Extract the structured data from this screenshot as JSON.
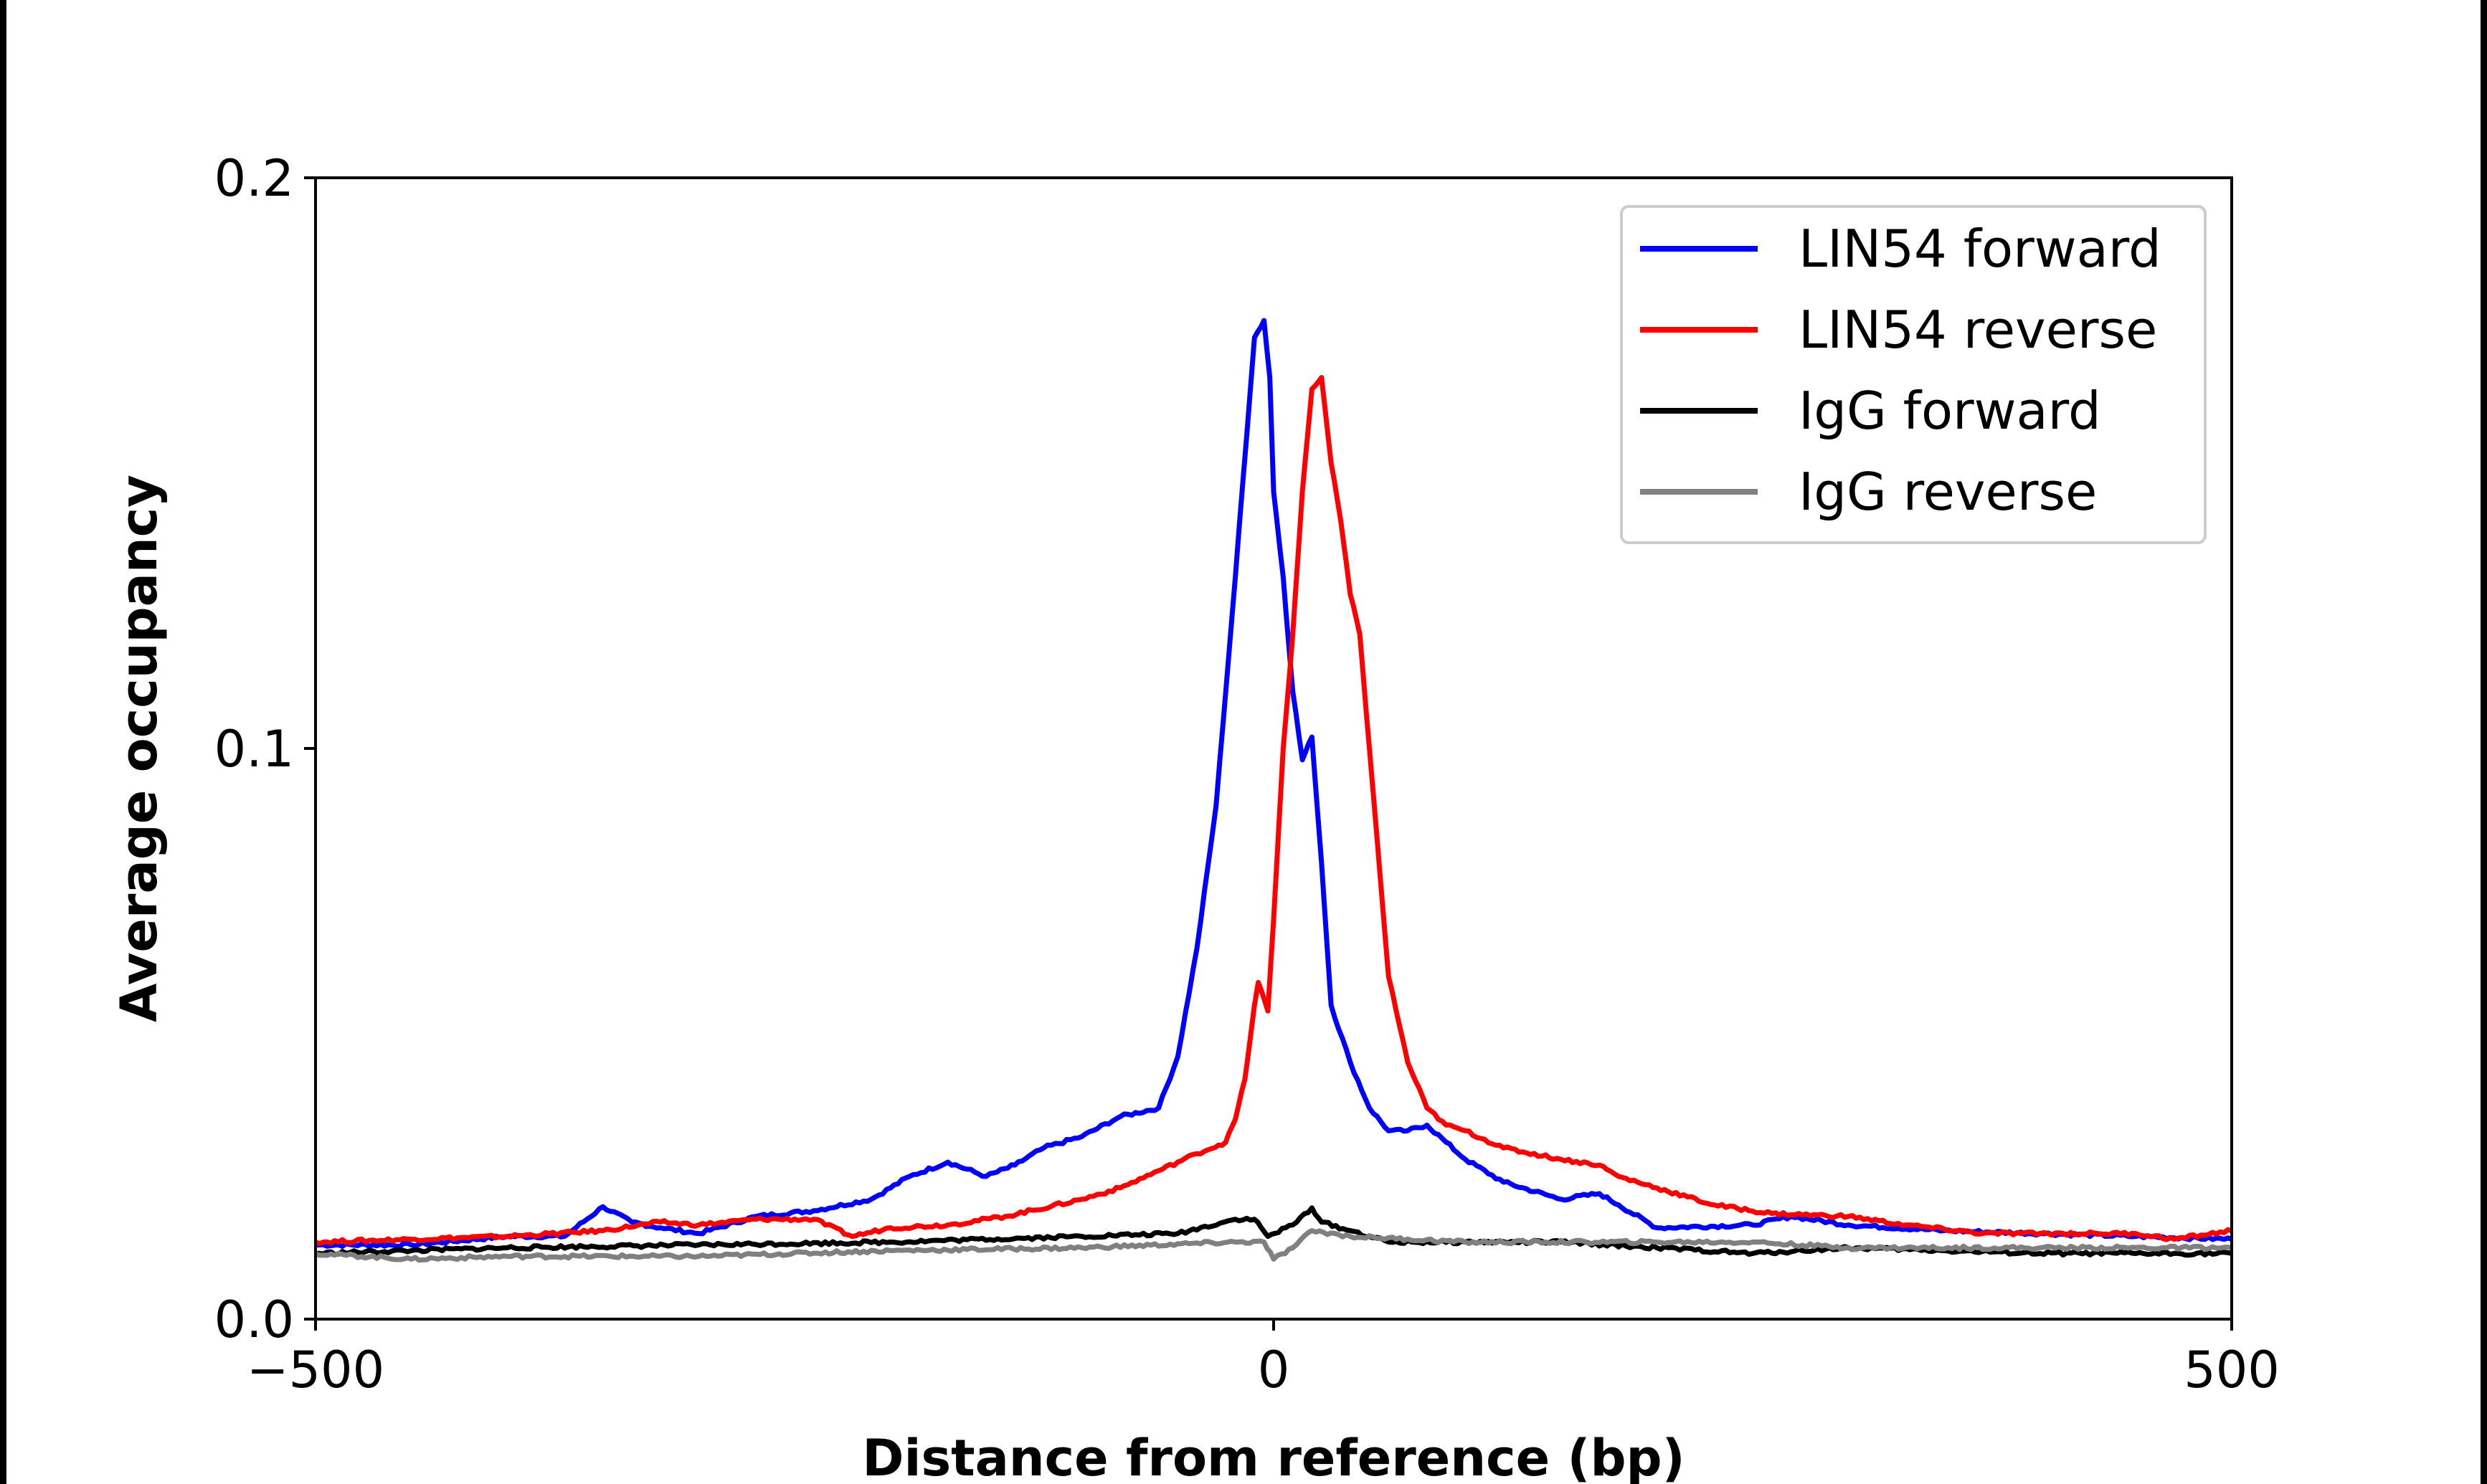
{
  "chart_data": {
    "type": "line",
    "title": "",
    "xlabel": "Distance from reference (bp)",
    "ylabel": "Average occupancy",
    "xlim": [
      -500,
      500
    ],
    "ylim": [
      0.0,
      0.2
    ],
    "xticks": [
      "−500",
      "0",
      "500"
    ],
    "xtick_values": [
      -500,
      0,
      500
    ],
    "yticks": [
      "0.0",
      "0.1",
      "0.2"
    ],
    "ytick_values": [
      0.0,
      0.1,
      0.2
    ],
    "grid": false,
    "legend_position": "top-right",
    "series": [
      {
        "name": "LIN54 forward",
        "color": "#0000ff",
        "x": [
          -500,
          -450,
          -400,
          -370,
          -350,
          -335,
          -320,
          -300,
          -270,
          -240,
          -210,
          -190,
          -170,
          -150,
          -135,
          -120,
          -100,
          -80,
          -60,
          -50,
          -40,
          -30,
          -20,
          -10,
          -5,
          -2,
          0,
          5,
          10,
          15,
          20,
          25,
          30,
          40,
          50,
          60,
          70,
          80,
          90,
          100,
          120,
          150,
          170,
          180,
          200,
          250,
          270,
          300,
          350,
          400,
          450,
          500
        ],
        "y": [
          0.013,
          0.013,
          0.0145,
          0.0145,
          0.0197,
          0.017,
          0.016,
          0.015,
          0.018,
          0.019,
          0.021,
          0.025,
          0.0275,
          0.025,
          0.027,
          0.03,
          0.032,
          0.0355,
          0.037,
          0.046,
          0.065,
          0.09,
          0.13,
          0.172,
          0.175,
          0.165,
          0.145,
          0.13,
          0.11,
          0.098,
          0.102,
          0.08,
          0.055,
          0.045,
          0.037,
          0.033,
          0.033,
          0.034,
          0.031,
          0.028,
          0.024,
          0.021,
          0.022,
          0.02,
          0.016,
          0.0165,
          0.018,
          0.0165,
          0.0155,
          0.015,
          0.0145,
          0.014
        ]
      },
      {
        "name": "LIN54 reverse",
        "color": "#ff0000",
        "x": [
          -500,
          -450,
          -400,
          -350,
          -320,
          -300,
          -270,
          -240,
          -220,
          -200,
          -170,
          -140,
          -100,
          -80,
          -60,
          -40,
          -25,
          -20,
          -15,
          -10,
          -8,
          -3,
          0,
          5,
          10,
          15,
          20,
          25,
          30,
          35,
          40,
          45,
          50,
          55,
          60,
          70,
          80,
          90,
          100,
          120,
          150,
          170,
          180,
          200,
          230,
          260,
          300,
          330,
          370,
          400,
          430,
          450,
          470,
          500
        ],
        "y": [
          0.0135,
          0.014,
          0.0145,
          0.0155,
          0.017,
          0.0165,
          0.0175,
          0.0175,
          0.0145,
          0.016,
          0.0165,
          0.018,
          0.021,
          0.023,
          0.026,
          0.029,
          0.031,
          0.035,
          0.042,
          0.055,
          0.059,
          0.054,
          0.07,
          0.1,
          0.12,
          0.145,
          0.163,
          0.165,
          0.15,
          0.14,
          0.127,
          0.12,
          0.1,
          0.08,
          0.06,
          0.045,
          0.037,
          0.034,
          0.033,
          0.03,
          0.028,
          0.027,
          0.025,
          0.023,
          0.02,
          0.0185,
          0.018,
          0.0165,
          0.015,
          0.015,
          0.015,
          0.015,
          0.014,
          0.0155
        ]
      },
      {
        "name": "IgG forward",
        "color": "#000000",
        "x": [
          -500,
          -450,
          -400,
          -300,
          -200,
          -100,
          -50,
          -20,
          -10,
          -3,
          10,
          20,
          25,
          40,
          60,
          100,
          150,
          200,
          250,
          300,
          350,
          400,
          450,
          500
        ],
        "y": [
          0.0115,
          0.012,
          0.0125,
          0.013,
          0.0135,
          0.0145,
          0.015,
          0.0175,
          0.0175,
          0.0145,
          0.0165,
          0.0195,
          0.017,
          0.0155,
          0.0135,
          0.0135,
          0.0135,
          0.0125,
          0.0115,
          0.0125,
          0.012,
          0.0115,
          0.0115,
          0.0115
        ]
      },
      {
        "name": "IgG reverse",
        "color": "#808080",
        "x": [
          -500,
          -450,
          -400,
          -300,
          -200,
          -100,
          -20,
          -5,
          0,
          10,
          20,
          40,
          100,
          200,
          250,
          300,
          400,
          500
        ],
        "y": [
          0.0115,
          0.0105,
          0.011,
          0.011,
          0.012,
          0.0125,
          0.0135,
          0.0135,
          0.0105,
          0.0125,
          0.0155,
          0.0145,
          0.0135,
          0.0135,
          0.0135,
          0.0125,
          0.0125,
          0.0125
        ]
      }
    ]
  }
}
